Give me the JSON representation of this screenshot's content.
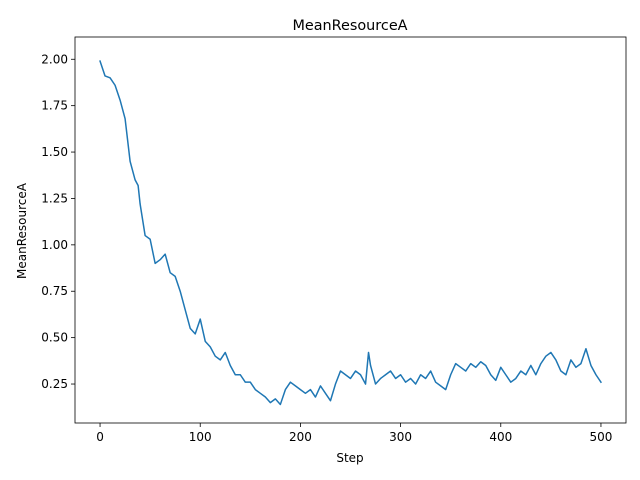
{
  "chart_data": {
    "type": "line",
    "title": "MeanResourceA",
    "xlabel": "Step",
    "ylabel": "MeanResourceA",
    "xlim": [
      -25,
      525
    ],
    "ylim": [
      0.04,
      2.12
    ],
    "xticks": [
      0,
      100,
      200,
      300,
      400,
      500
    ],
    "xtick_labels": [
      "0",
      "100",
      "200",
      "300",
      "400",
      "500"
    ],
    "yticks": [
      0.25,
      0.5,
      0.75,
      1.0,
      1.25,
      1.5,
      1.75,
      2.0
    ],
    "ytick_labels": [
      "0.25",
      "0.50",
      "0.75",
      "1.00",
      "1.25",
      "1.50",
      "1.75",
      "2.00"
    ],
    "grid": false,
    "series": [
      {
        "color": "#1f77b4",
        "x": [
          0,
          5,
          10,
          15,
          20,
          25,
          30,
          35,
          38,
          40,
          45,
          50,
          55,
          60,
          65,
          70,
          75,
          80,
          85,
          90,
          95,
          100,
          105,
          110,
          115,
          120,
          125,
          130,
          135,
          140,
          145,
          150,
          155,
          160,
          165,
          170,
          175,
          180,
          185,
          190,
          195,
          200,
          205,
          210,
          215,
          220,
          225,
          230,
          235,
          240,
          245,
          250,
          255,
          260,
          265,
          268,
          270,
          275,
          280,
          285,
          290,
          295,
          300,
          305,
          310,
          315,
          320,
          325,
          330,
          335,
          340,
          345,
          350,
          355,
          360,
          365,
          370,
          375,
          380,
          385,
          390,
          395,
          400,
          405,
          410,
          415,
          420,
          425,
          430,
          435,
          440,
          445,
          450,
          455,
          460,
          465,
          470,
          475,
          480,
          485,
          490,
          495,
          500
        ],
        "y": [
          1.99,
          1.91,
          1.9,
          1.86,
          1.78,
          1.68,
          1.45,
          1.35,
          1.32,
          1.22,
          1.05,
          1.03,
          0.9,
          0.92,
          0.95,
          0.85,
          0.83,
          0.75,
          0.65,
          0.55,
          0.52,
          0.6,
          0.48,
          0.45,
          0.4,
          0.38,
          0.42,
          0.35,
          0.3,
          0.3,
          0.26,
          0.26,
          0.22,
          0.2,
          0.18,
          0.15,
          0.17,
          0.14,
          0.22,
          0.26,
          0.24,
          0.22,
          0.2,
          0.22,
          0.18,
          0.24,
          0.2,
          0.16,
          0.25,
          0.32,
          0.3,
          0.28,
          0.32,
          0.3,
          0.25,
          0.42,
          0.35,
          0.25,
          0.28,
          0.3,
          0.32,
          0.28,
          0.3,
          0.26,
          0.28,
          0.25,
          0.3,
          0.28,
          0.32,
          0.26,
          0.24,
          0.22,
          0.3,
          0.36,
          0.34,
          0.32,
          0.36,
          0.34,
          0.37,
          0.35,
          0.3,
          0.27,
          0.34,
          0.3,
          0.26,
          0.28,
          0.32,
          0.3,
          0.35,
          0.3,
          0.36,
          0.4,
          0.42,
          0.38,
          0.32,
          0.3,
          0.38,
          0.34,
          0.36,
          0.44,
          0.35,
          0.3,
          0.26
        ]
      }
    ]
  }
}
